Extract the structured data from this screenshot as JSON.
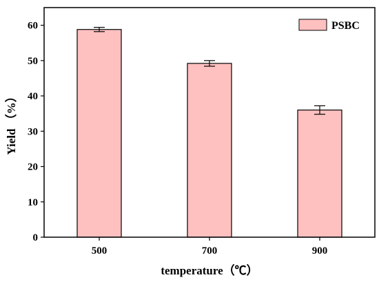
{
  "chart_data": {
    "type": "bar",
    "categories": [
      "500",
      "700",
      "900"
    ],
    "series": [
      {
        "name": "PSBC",
        "values": [
          58.8,
          49.2,
          36.0
        ],
        "errors": [
          0.6,
          0.8,
          1.2
        ]
      }
    ],
    "xlabel": "temperature（℃）",
    "ylabel": "Yield （%）",
    "ylim": [
      0,
      65
    ],
    "yticks": [
      "0",
      "10",
      "20",
      "30",
      "40",
      "50",
      "60"
    ],
    "grid": false,
    "legend_position": "top-right",
    "colors": {
      "bar_fill": "#ffc0c0",
      "bar_stroke": "#000000"
    }
  }
}
